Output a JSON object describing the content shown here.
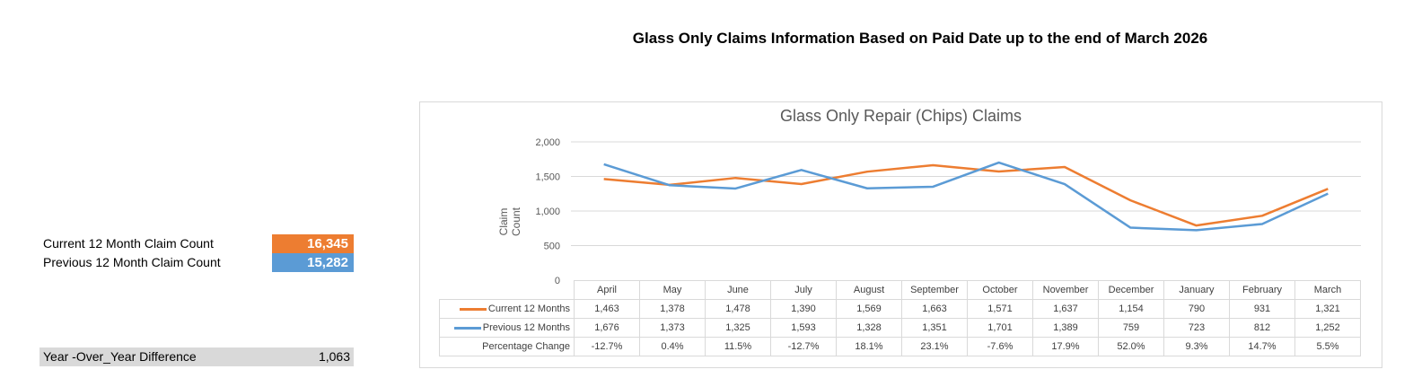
{
  "page_title": "Glass Only Claims Information Based on Paid Date up to the end of March 2026",
  "kpis": {
    "current_label": "Current 12 Month Claim Count",
    "current_value": "16,345",
    "previous_label": "Previous 12 Month Claim Count",
    "previous_value": "15,282",
    "yoy_label": "Year -Over_Year Difference",
    "yoy_value": "1,063"
  },
  "colors": {
    "current": "#ed7d31",
    "previous": "#5b9bd5"
  },
  "chart_data": {
    "type": "line",
    "title": "Glass Only Repair (Chips) Claims",
    "ylabel": "Claim Count",
    "ylim": [
      0,
      2000
    ],
    "yticks": [
      "0",
      "500",
      "1,000",
      "1,500",
      "2,000"
    ],
    "grid": true,
    "legend": "data table",
    "categories": [
      "April",
      "May",
      "June",
      "July",
      "August",
      "September",
      "October",
      "November",
      "December",
      "January",
      "February",
      "March"
    ],
    "series": [
      {
        "name": "Current 12 Months",
        "values": [
          1463,
          1378,
          1478,
          1390,
          1569,
          1663,
          1571,
          1637,
          1154,
          790,
          931,
          1321
        ],
        "labels": [
          "1,463",
          "1,378",
          "1,478",
          "1,390",
          "1,569",
          "1,663",
          "1,571",
          "1,637",
          "1,154",
          "790",
          "931",
          "1,321"
        ]
      },
      {
        "name": "Previous 12 Months",
        "values": [
          1676,
          1373,
          1325,
          1593,
          1328,
          1351,
          1701,
          1389,
          759,
          723,
          812,
          1252
        ],
        "labels": [
          "1,676",
          "1,373",
          "1,325",
          "1,593",
          "1,328",
          "1,351",
          "1,701",
          "1,389",
          "759",
          "723",
          "812",
          "1,252"
        ]
      }
    ],
    "percentage_change": {
      "name": "Percentage Change",
      "values": [
        "-12.7%",
        "0.4%",
        "11.5%",
        "-12.7%",
        "18.1%",
        "23.1%",
        "-7.6%",
        "17.9%",
        "52.0%",
        "9.3%",
        "14.7%",
        "5.5%"
      ]
    }
  }
}
